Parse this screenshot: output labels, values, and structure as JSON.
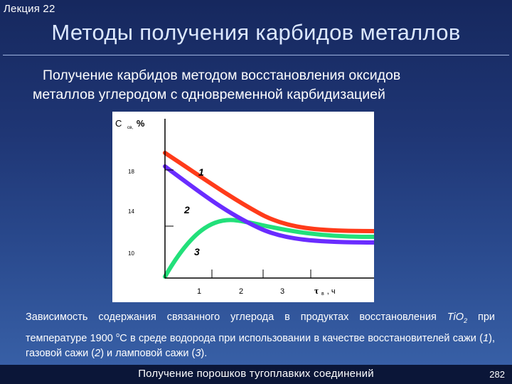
{
  "slide": {
    "lecture_label": "Лекция 22",
    "title": "Методы получения карбидов металлов",
    "subtitle_line1": "Получение карбидов методом восстановления оксидов",
    "subtitle_line2": "металлов углеродом с одновременной карбидизацией",
    "footer": "Получение порошков тугоплавких соединений",
    "page_number": "282"
  },
  "caption": {
    "part1": "Зависимость содержания связанного углерода в продуктах восстановления",
    "formula_base": "TiO",
    "formula_sub": "2",
    "part2": " при температуре 1900 ",
    "degree": "o",
    "part3": "C в среде водорода при использовании в качестве восстановителей сажи (",
    "n1": "1",
    "part4": "), газовой сажи (",
    "n2": "2",
    "part5": ") и ламповой сажи (",
    "n3": "3",
    "part6": ")."
  },
  "chart_data": {
    "type": "line",
    "ylabel_main": "C",
    "ylabel_sub": "св,",
    "ylabel_unit": "%",
    "xlabel_main": "τ",
    "xlabel_sub": "в",
    "xlabel_unit": ", ч",
    "y_ticks": [
      "18",
      "14",
      "10"
    ],
    "x_ticks": [
      "1",
      "2",
      "3"
    ],
    "colors": {
      "1": "#ff3b1a",
      "2": "#6a2cff",
      "3": "#22e07a",
      "axis": "#000000"
    },
    "series": [
      {
        "name": "1",
        "label": "1"
      },
      {
        "name": "2",
        "label": "2"
      },
      {
        "name": "3",
        "label": "3"
      }
    ]
  }
}
